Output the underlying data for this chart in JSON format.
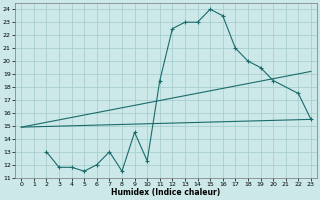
{
  "xlabel": "Humidex (Indice chaleur)",
  "bg_color": "#cce8e8",
  "grid_color": "#aacfcf",
  "line_color": "#1a6b6b",
  "x_ticks": [
    0,
    1,
    2,
    3,
    4,
    5,
    6,
    7,
    8,
    9,
    10,
    11,
    12,
    13,
    14,
    15,
    16,
    17,
    18,
    19,
    20,
    21,
    22,
    23
  ],
  "y_ticks": [
    11,
    12,
    13,
    14,
    15,
    16,
    17,
    18,
    19,
    20,
    21,
    22,
    23,
    24
  ],
  "xlim": [
    -0.5,
    23.5
  ],
  "ylim": [
    11,
    24.5
  ],
  "line1_x": [
    2,
    3,
    4,
    5,
    6,
    7,
    8,
    9,
    10,
    11,
    12,
    13,
    14,
    15,
    16,
    17,
    18,
    19,
    20,
    22,
    23
  ],
  "line1_y": [
    13.0,
    11.8,
    11.8,
    11.5,
    12.0,
    13.0,
    11.5,
    14.5,
    12.3,
    18.5,
    22.5,
    23.0,
    23.0,
    24.0,
    23.5,
    21.0,
    20.0,
    19.5,
    18.5,
    17.5,
    15.5
  ],
  "line2_x": [
    0,
    23
  ],
  "line2_y": [
    14.9,
    19.2
  ],
  "line3_x": [
    0,
    23
  ],
  "line3_y": [
    14.9,
    15.5
  ],
  "marker": "+",
  "markersize": 3,
  "linewidth": 0.8
}
